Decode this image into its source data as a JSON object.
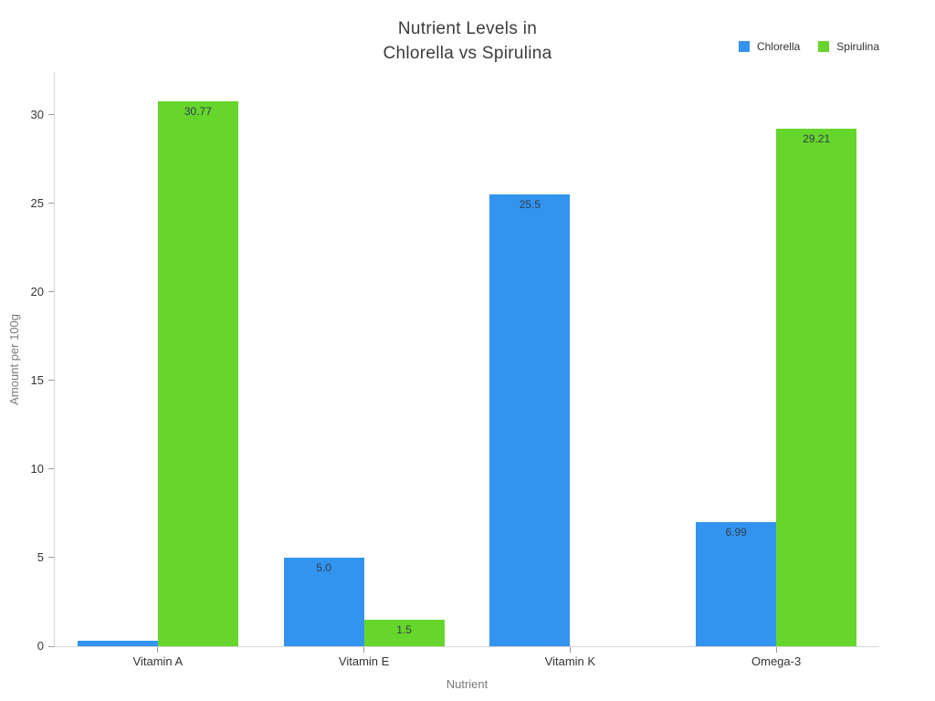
{
  "title": {
    "line1": "Nutrient Levels in",
    "line2": "Chlorella vs Spirulina"
  },
  "chart_data": {
    "type": "bar",
    "title": "Nutrient Levels in Chlorella vs Spirulina",
    "categories": [
      "Vitamin A",
      "Vitamin E",
      "Vitamin K",
      "Omega-3"
    ],
    "series": [
      {
        "name": "Chlorella",
        "color": "#3394f0",
        "values": [
          0.3,
          5.0,
          25.5,
          6.99
        ],
        "bar_labels": [
          "",
          "5.0",
          "25.5",
          "6.99"
        ]
      },
      {
        "name": "Spirulina",
        "color": "#66d62c",
        "values": [
          30.77,
          1.5,
          0,
          29.21
        ],
        "bar_labels": [
          "30.77",
          "1.5",
          "",
          "29.21"
        ]
      }
    ],
    "xlabel": "Nutrient",
    "ylabel": "Amount per 100g",
    "ylim": [
      0,
      32.4
    ],
    "yticks": [
      0,
      5,
      10,
      15,
      20,
      25,
      30
    ],
    "grid": false,
    "legend_position": "top-right",
    "background": "#ffffff",
    "bar_label_color": "#2f3d4d"
  }
}
